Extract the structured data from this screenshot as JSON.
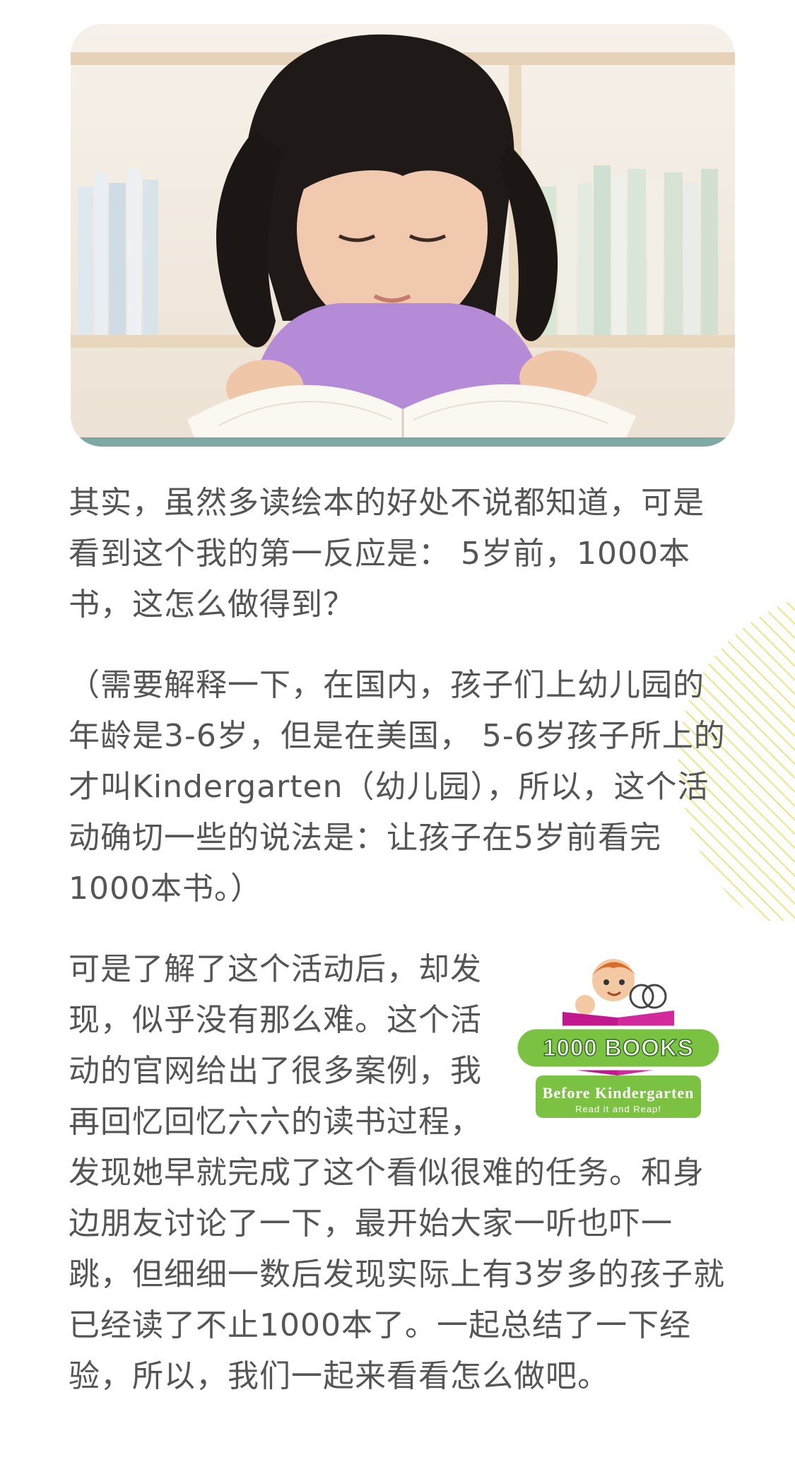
{
  "hero": {
    "icon": "girl-reading-book-photo"
  },
  "paragraphs": {
    "p1": "其实，虽然多读绘本的好处不说都知道，可是看到这个我的第一反应是： 5岁前，1000本书，这怎么做得到？",
    "p2": "（需要解释一下，在国内，孩子们上幼儿园的年龄是3-6岁，但是在美国， 5-6岁孩子所上的才叫Kindergarten（幼儿园），所以，这个活动确切一些的说法是：让孩子在5岁前看完1000本书。）",
    "p3": "可是了解了这个活动后，却发现，似乎没有那么难。这个活动的官网给出了很多案例，我再回忆回忆六六的读书过程，发现她早就完成了这个看似很难的任务。和身边朋友讨论了一下，最开始大家一听也吓一跳，但细细一数后发现实际上有3岁多的孩子就已经读了不止1000本了。一起总结了一下经验，所以，我们一起来看看怎么做吧。"
  },
  "logo": {
    "title": "1000 BOOKS",
    "subtitle": "Before Kindergarten",
    "tagline": "Read it and Reap!"
  },
  "colors": {
    "text": "#555555",
    "stripe": "#f2dc5c",
    "logo_green": "#7cc242",
    "logo_book": "#c2188d"
  }
}
